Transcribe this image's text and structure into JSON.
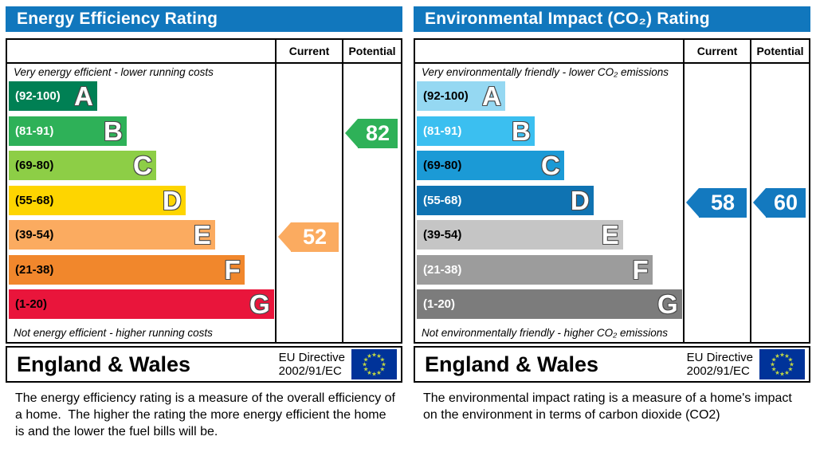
{
  "colors": {
    "header_bg": "#1177bd",
    "border": "#000000",
    "eu_flag_bg": "#003399",
    "eu_star": "#bfd545"
  },
  "panels": [
    {
      "title": "Energy Efficiency Rating",
      "columns": {
        "current": "Current",
        "potential": "Potential"
      },
      "top_note": "Very energy efficient - lower running costs",
      "bottom_note": "Not energy efficient - higher running costs",
      "bands": [
        {
          "letter": "A",
          "range": "(92-100)",
          "color": "#008054",
          "label_color": "#ffffff",
          "width_pct": 33
        },
        {
          "letter": "B",
          "range": "(81-91)",
          "color": "#2eb158",
          "label_color": "#ffffff",
          "width_pct": 44
        },
        {
          "letter": "C",
          "range": "(69-80)",
          "color": "#8dce46",
          "label_color": "#000000",
          "width_pct": 55
        },
        {
          "letter": "D",
          "range": "(55-68)",
          "color": "#fed500",
          "label_color": "#000000",
          "width_pct": 66
        },
        {
          "letter": "E",
          "range": "(39-54)",
          "color": "#fbab60",
          "label_color": "#000000",
          "width_pct": 77
        },
        {
          "letter": "F",
          "range": "(21-38)",
          "color": "#f1872c",
          "label_color": "#000000",
          "width_pct": 88
        },
        {
          "letter": "G",
          "range": "(1-20)",
          "color": "#e9153b",
          "label_color": "#000000",
          "width_pct": 99
        }
      ],
      "current": {
        "value": "52",
        "band_index": 4,
        "color": "#fbab60"
      },
      "potential": {
        "value": "82",
        "band_index": 1,
        "color": "#2eb158"
      },
      "footer": {
        "region": "England & Wales",
        "directive_line1": "EU Directive",
        "directive_line2": "2002/91/EC"
      },
      "description": "The energy efficiency rating is a measure of the overall efficiency of a home.  The higher the rating the more energy efficient the home is and the lower the fuel bills will be."
    },
    {
      "title": "Environmental Impact (CO₂) Rating",
      "columns": {
        "current": "Current",
        "potential": "Potential"
      },
      "top_note": "Very environmentally friendly - lower CO₂ emissions",
      "bottom_note": "Not environmentally friendly - higher CO₂ emissions",
      "bands": [
        {
          "letter": "A",
          "range": "(92-100)",
          "color": "#95d8f2",
          "label_color": "#000000",
          "width_pct": 33
        },
        {
          "letter": "B",
          "range": "(81-91)",
          "color": "#3bbff0",
          "label_color": "#ffffff",
          "width_pct": 44
        },
        {
          "letter": "C",
          "range": "(69-80)",
          "color": "#1b9ad6",
          "label_color": "#000000",
          "width_pct": 55
        },
        {
          "letter": "D",
          "range": "(55-68)",
          "color": "#0f73b2",
          "label_color": "#ffffff",
          "width_pct": 66
        },
        {
          "letter": "E",
          "range": "(39-54)",
          "color": "#c5c5c5",
          "label_color": "#000000",
          "width_pct": 77
        },
        {
          "letter": "F",
          "range": "(21-38)",
          "color": "#9c9c9c",
          "label_color": "#ffffff",
          "width_pct": 88
        },
        {
          "letter": "G",
          "range": "(1-20)",
          "color": "#7c7c7c",
          "label_color": "#ffffff",
          "width_pct": 99
        }
      ],
      "current": {
        "value": "58",
        "band_index": 3,
        "color": "#1379bf"
      },
      "potential": {
        "value": "60",
        "band_index": 3,
        "color": "#1379bf"
      },
      "footer": {
        "region": "England & Wales",
        "directive_line1": "EU Directive",
        "directive_line2": "2002/91/EC"
      },
      "description": "The environmental impact rating is a measure of a home's impact on the environment in terms of carbon dioxide (CO2)"
    }
  ],
  "chart_data": [
    {
      "type": "bar",
      "title": "Energy Efficiency Rating",
      "categories": [
        "A (92-100)",
        "B (81-91)",
        "C (69-80)",
        "D (55-68)",
        "E (39-54)",
        "F (21-38)",
        "G (1-20)"
      ],
      "bar_lengths_pct": [
        33,
        44,
        55,
        66,
        77,
        88,
        99
      ],
      "current": 52,
      "current_band": "E",
      "potential": 82,
      "potential_band": "B",
      "top_annotation": "Very energy efficient - lower running costs",
      "bottom_annotation": "Not energy efficient - higher running costs",
      "footer": "England & Wales, EU Directive 2002/91/EC"
    },
    {
      "type": "bar",
      "title": "Environmental Impact (CO₂) Rating",
      "categories": [
        "A (92-100)",
        "B (81-91)",
        "C (69-80)",
        "D (55-68)",
        "E (39-54)",
        "F (21-38)",
        "G (1-20)"
      ],
      "bar_lengths_pct": [
        33,
        44,
        55,
        66,
        77,
        88,
        99
      ],
      "current": 58,
      "current_band": "D",
      "potential": 60,
      "potential_band": "D",
      "top_annotation": "Very environmentally friendly - lower CO₂ emissions",
      "bottom_annotation": "Not environmentally friendly - higher CO₂ emissions",
      "footer": "England & Wales, EU Directive 2002/91/EC"
    }
  ]
}
